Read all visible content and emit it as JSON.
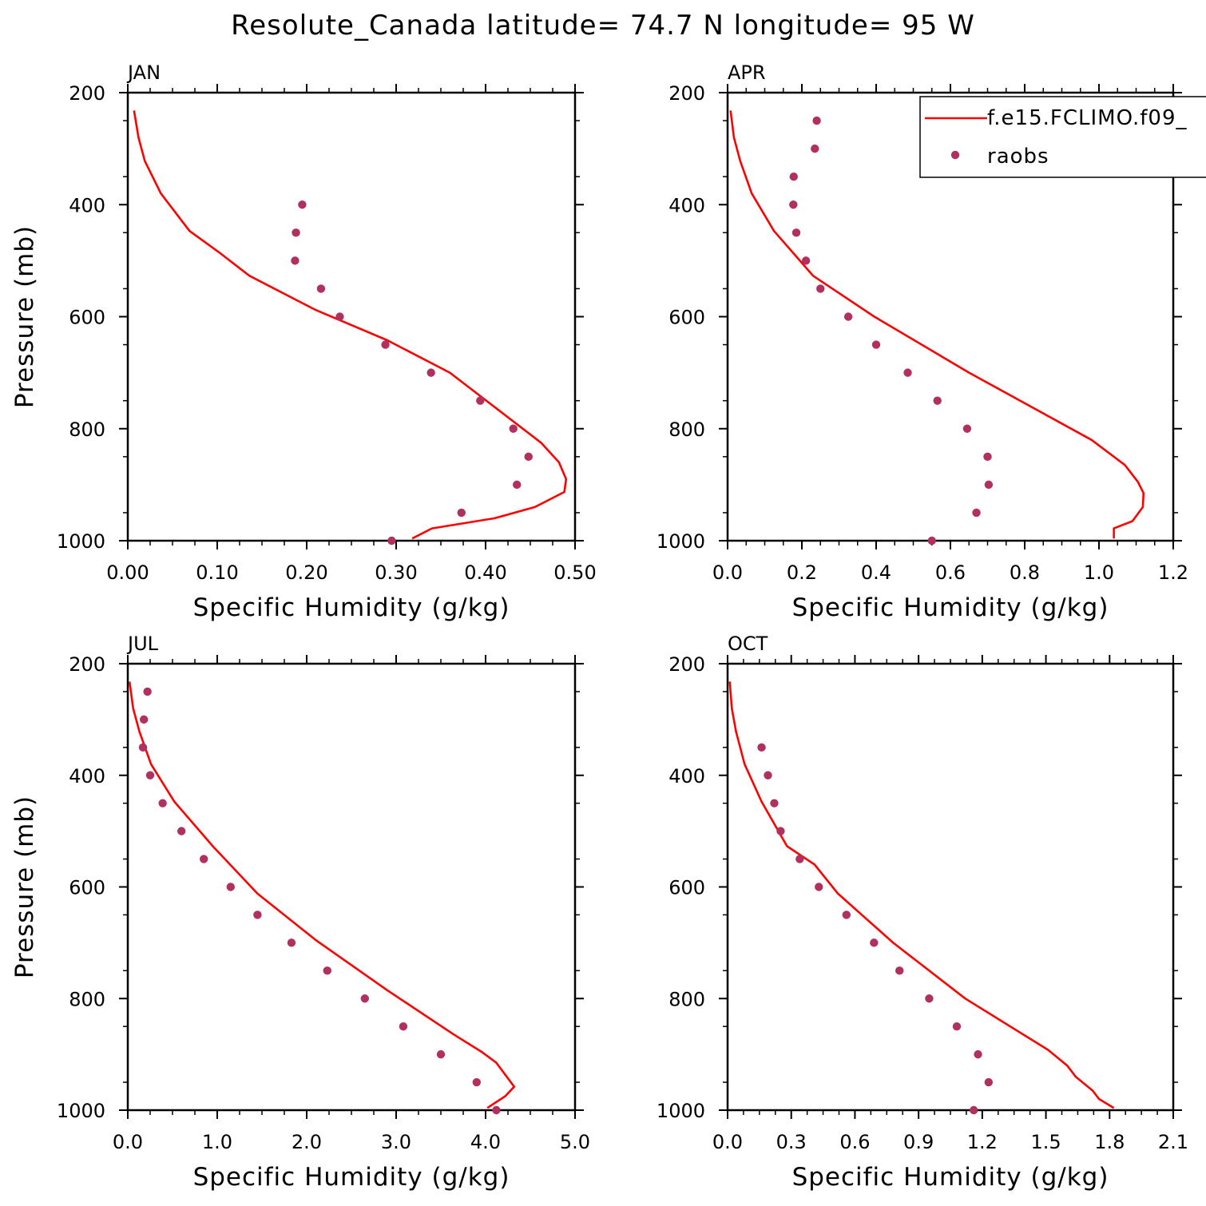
{
  "title": "Resolute_Canada  latitude= 74.7 N longitude= 95 W",
  "colors": {
    "model": "#ff0000",
    "obs": "#b03060",
    "axis": "#000000"
  },
  "legend": {
    "placement": "top-right of APR panel",
    "model_label": "f.e15.FCLIMO.f09_",
    "obs_label": "raobs"
  },
  "chart_data": [
    {
      "type": "line",
      "panel_label": "JAN",
      "xlabel": "Specific Humidity (g/kg)",
      "ylabel": "Pressure (mb)",
      "xlim": [
        0,
        0.5
      ],
      "ylim": [
        200,
        1000
      ],
      "y_inverted": true,
      "xticks": [
        "0.00",
        "0.10",
        "0.20",
        "0.30",
        "0.40",
        "0.50"
      ],
      "xtick_values": [
        0,
        0.1,
        0.2,
        0.3,
        0.4,
        0.5
      ],
      "yticks": [
        "200",
        "400",
        "600",
        "800",
        "1000"
      ],
      "ytick_values": [
        200,
        400,
        600,
        800,
        1000
      ],
      "series": [
        {
          "name": "f.e15.FCLIMO.f09_",
          "kind": "line",
          "x": [
            0.007,
            0.012,
            0.019,
            0.037,
            0.069,
            0.102,
            0.136,
            0.21,
            0.29,
            0.36,
            0.413,
            0.462,
            0.482,
            0.49,
            0.488,
            0.455,
            0.41,
            0.34,
            0.318
          ],
          "y": [
            232,
            280,
            322,
            380,
            447,
            485,
            527,
            588,
            642,
            700,
            765,
            825,
            860,
            890,
            913,
            940,
            960,
            978,
            996
          ]
        },
        {
          "name": "raobs",
          "kind": "points",
          "x": [
            0.195,
            0.188,
            0.187,
            0.216,
            0.237,
            0.288,
            0.339,
            0.394,
            0.431,
            0.448,
            0.435,
            0.373,
            0.295
          ],
          "y": [
            400,
            450,
            500,
            550,
            600,
            650,
            700,
            750,
            800,
            850,
            900,
            950,
            1000
          ]
        }
      ]
    },
    {
      "type": "line",
      "panel_label": "APR",
      "xlabel": "Specific Humidity (g/kg)",
      "ylabel": "",
      "xlim": [
        0,
        1.2
      ],
      "ylim": [
        200,
        1000
      ],
      "y_inverted": true,
      "xticks": [
        "0.0",
        "0.2",
        "0.4",
        "0.6",
        "0.8",
        "1.0",
        "1.2"
      ],
      "xtick_values": [
        0,
        0.2,
        0.4,
        0.6,
        0.8,
        1.0,
        1.2
      ],
      "yticks": [
        "200",
        "400",
        "600",
        "800",
        "1000"
      ],
      "ytick_values": [
        200,
        400,
        600,
        800,
        1000
      ],
      "series": [
        {
          "name": "f.e15.FCLIMO.f09_",
          "kind": "line",
          "x": [
            0.008,
            0.017,
            0.034,
            0.065,
            0.125,
            0.23,
            0.395,
            0.65,
            0.98,
            1.07,
            1.105,
            1.12,
            1.118,
            1.09,
            1.04,
            1.04
          ],
          "y": [
            232,
            280,
            322,
            380,
            447,
            527,
            600,
            700,
            820,
            865,
            895,
            915,
            940,
            965,
            978,
            996
          ]
        },
        {
          "name": "raobs",
          "kind": "points",
          "x": [
            0.24,
            0.235,
            0.178,
            0.177,
            0.185,
            0.211,
            0.25,
            0.325,
            0.4,
            0.485,
            0.565,
            0.645,
            0.7,
            0.703,
            0.67,
            0.55
          ],
          "y": [
            250,
            300,
            350,
            400,
            450,
            500,
            550,
            600,
            650,
            700,
            750,
            800,
            850,
            900,
            950,
            1000
          ]
        }
      ]
    },
    {
      "type": "line",
      "panel_label": "JUL",
      "xlabel": "Specific Humidity (g/kg)",
      "ylabel": "Pressure (mb)",
      "xlim": [
        0,
        5.0
      ],
      "ylim": [
        200,
        1000
      ],
      "y_inverted": true,
      "xticks": [
        "0.0",
        "1.0",
        "2.0",
        "3.0",
        "4.0",
        "5.0"
      ],
      "xtick_values": [
        0,
        1,
        2,
        3,
        4,
        5
      ],
      "yticks": [
        "200",
        "400",
        "600",
        "800",
        "1000"
      ],
      "ytick_values": [
        200,
        400,
        600,
        800,
        1000
      ],
      "series": [
        {
          "name": "f.e15.FCLIMO.f09_",
          "kind": "line",
          "x": [
            0.02,
            0.06,
            0.13,
            0.26,
            0.52,
            0.95,
            1.45,
            2.1,
            2.9,
            3.65,
            3.95,
            4.12,
            4.32,
            4.22,
            4.02
          ],
          "y": [
            232,
            280,
            322,
            380,
            447,
            527,
            612,
            695,
            785,
            865,
            895,
            915,
            958,
            975,
            996
          ]
        },
        {
          "name": "raobs",
          "kind": "points",
          "x": [
            0.22,
            0.18,
            0.17,
            0.25,
            0.39,
            0.6,
            0.85,
            1.15,
            1.45,
            1.83,
            2.23,
            2.65,
            3.08,
            3.5,
            3.9,
            4.12
          ],
          "y": [
            250,
            300,
            350,
            400,
            450,
            500,
            550,
            600,
            650,
            700,
            750,
            800,
            850,
            900,
            950,
            1000
          ]
        }
      ]
    },
    {
      "type": "line",
      "panel_label": "OCT",
      "xlabel": "Specific Humidity (g/kg)",
      "ylabel": "",
      "xlim": [
        0,
        2.1
      ],
      "ylim": [
        200,
        1000
      ],
      "y_inverted": true,
      "xticks": [
        "0.0",
        "0.3",
        "0.6",
        "0.9",
        "1.2",
        "1.5",
        "1.8",
        "2.1"
      ],
      "xtick_values": [
        0,
        0.3,
        0.6,
        0.9,
        1.2,
        1.5,
        1.8,
        2.1
      ],
      "yticks": [
        "200",
        "400",
        "600",
        "800",
        "1000"
      ],
      "ytick_values": [
        200,
        400,
        600,
        800,
        1000
      ],
      "series": [
        {
          "name": "f.e15.FCLIMO.f09_",
          "kind": "line",
          "x": [
            0.01,
            0.02,
            0.04,
            0.08,
            0.16,
            0.28,
            0.41,
            0.52,
            0.78,
            1.12,
            1.51,
            1.6,
            1.64,
            1.72,
            1.75,
            1.82
          ],
          "y": [
            232,
            280,
            322,
            380,
            447,
            527,
            560,
            612,
            700,
            800,
            892,
            920,
            940,
            965,
            980,
            996
          ]
        },
        {
          "name": "raobs",
          "kind": "points",
          "x": [
            0.16,
            0.19,
            0.22,
            0.25,
            0.34,
            0.43,
            0.56,
            0.69,
            0.81,
            0.95,
            1.08,
            1.18,
            1.23,
            1.16
          ],
          "y": [
            350,
            400,
            450,
            500,
            550,
            600,
            650,
            700,
            750,
            800,
            850,
            900,
            950,
            1000
          ]
        }
      ]
    }
  ]
}
